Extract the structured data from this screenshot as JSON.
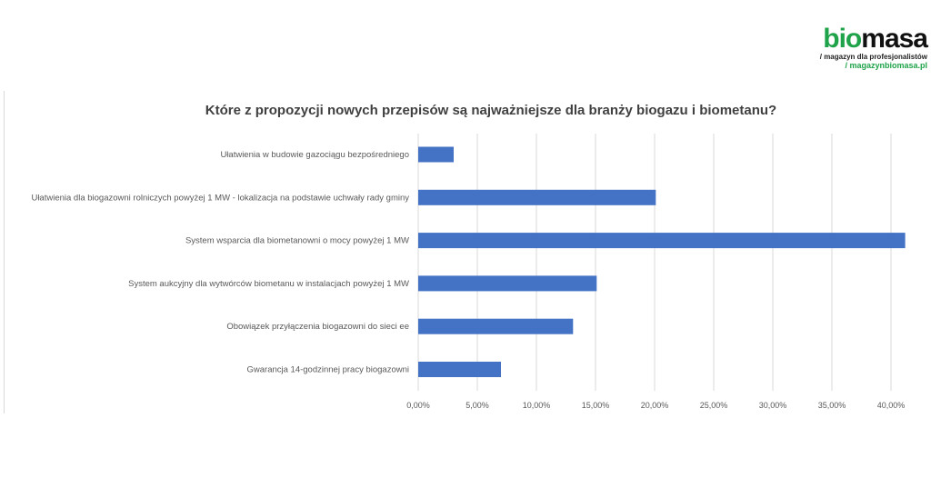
{
  "logo": {
    "brand_green": "bio",
    "brand_black": "masa",
    "tagline": "/ magazyn dla profesjonalistów",
    "site": "/ magazynbiomasa.pl"
  },
  "chart_data": {
    "type": "bar",
    "orientation": "horizontal",
    "title": "Które z propozycji nowych przepisów są najważniejsze dla branży biogazu i biometanu?",
    "categories": [
      "Ułatwienia w budowie gazociągu bezpośredniego",
      "Ułatwienia dla biogazowni rolniczych powyżej 1 MW - lokalizacja na podstawie uchwały rady gminy",
      "System wsparcia dla biometanowni o mocy powyżej 1 MW",
      "System aukcyjny dla wytwórców biometanu w instalacjach powyżej 1 MW",
      "Obowiązek przyłączenia biogazowni  do sieci ee",
      "Gwarancja 14-godzinnej pracy biogazowni"
    ],
    "values": [
      3.0,
      20.1,
      41.2,
      15.1,
      13.1,
      7.0
    ],
    "unit": "%",
    "xlim": [
      0,
      40
    ],
    "xticks": [
      "0,00%",
      "5,00%",
      "10,00%",
      "15,00%",
      "20,00%",
      "25,00%",
      "30,00%",
      "35,00%",
      "40,00%"
    ],
    "grid": true,
    "bar_color": "#4472c4"
  }
}
